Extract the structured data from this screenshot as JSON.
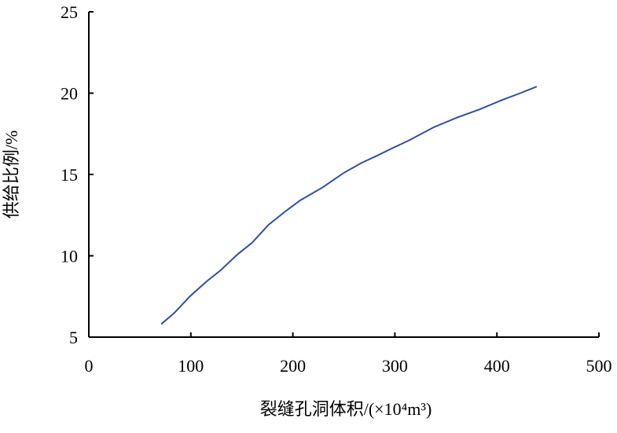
{
  "chart_data": {
    "type": "line",
    "x_label": "裂缝孔洞体积/(×10⁴m³)",
    "y_label": "供给比例/%",
    "series": [
      {
        "color": "#2e4fa0",
        "x": [
          71,
          84,
          99,
          115,
          129,
          146,
          160,
          176,
          192,
          207,
          229,
          250,
          267,
          284,
          297,
          314,
          338,
          361,
          383,
          406,
          423,
          439
        ],
        "values": [
          5.8,
          6.5,
          7.5,
          8.4,
          9.1,
          10.1,
          10.8,
          11.9,
          12.7,
          13.4,
          14.2,
          15.1,
          15.7,
          16.2,
          16.6,
          17.1,
          17.9,
          18.5,
          19.0,
          19.6,
          20.0,
          20.4
        ]
      }
    ],
    "xlim": [
      0,
      500
    ],
    "xticks": [
      0,
      100,
      200,
      300,
      400,
      500
    ],
    "ylim": [
      5,
      25
    ],
    "yticks": [
      5,
      10,
      15,
      20,
      25
    ],
    "grid": false
  }
}
